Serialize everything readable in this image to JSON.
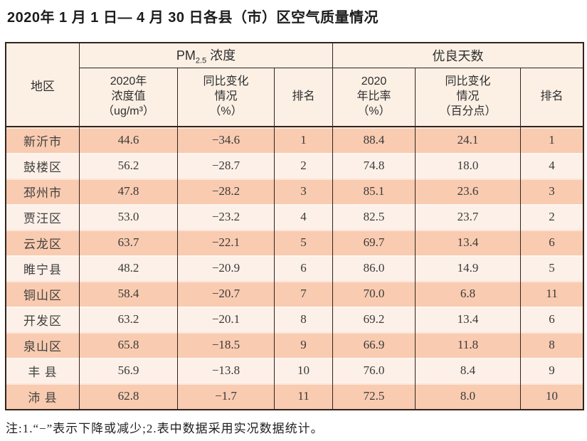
{
  "title": "2020年 1 月 1 日— 4 月 30 日各县（市）区空气质量情况",
  "note": "注:1.“−”表示下降或减少;2.表中数据采用实况数据统计。",
  "colors": {
    "row_dark": "#f9cbb0",
    "row_light": "#fdf0e8",
    "header_bg": "#fcf0e5",
    "border": "#32231c"
  },
  "table": {
    "region_header": "地区",
    "group_pm": {
      "prefix": "PM",
      "sub": "2.5",
      "suffix": " 浓度"
    },
    "group_days": "优良天数",
    "subheaders": {
      "pm_value": "2020年\n浓度值\n（ug/m³）",
      "pm_change": "同比变化\n情况\n（%）",
      "pm_rank": "排名",
      "days_ratio": "2020\n年比率\n（%）",
      "days_change": "同比变化\n情况\n（百分点）",
      "days_rank": "排名"
    },
    "rows": [
      {
        "region": "新沂市",
        "pm_value": "44.6",
        "pm_change": "−34.6",
        "pm_rank": "1",
        "days_ratio": "88.4",
        "days_change": "24.1",
        "days_rank": "1"
      },
      {
        "region": "鼓楼区",
        "pm_value": "56.2",
        "pm_change": "−28.7",
        "pm_rank": "2",
        "days_ratio": "74.8",
        "days_change": "18.0",
        "days_rank": "4"
      },
      {
        "region": "邳州市",
        "pm_value": "47.8",
        "pm_change": "−28.2",
        "pm_rank": "3",
        "days_ratio": "85.1",
        "days_change": "23.6",
        "days_rank": "3"
      },
      {
        "region": "贾汪区",
        "pm_value": "53.0",
        "pm_change": "−23.2",
        "pm_rank": "4",
        "days_ratio": "82.5",
        "days_change": "23.7",
        "days_rank": "2"
      },
      {
        "region": "云龙区",
        "pm_value": "63.7",
        "pm_change": "−22.1",
        "pm_rank": "5",
        "days_ratio": "69.7",
        "days_change": "13.4",
        "days_rank": "6"
      },
      {
        "region": "睢宁县",
        "pm_value": "48.2",
        "pm_change": "−20.9",
        "pm_rank": "6",
        "days_ratio": "86.0",
        "days_change": "14.9",
        "days_rank": "5"
      },
      {
        "region": "铜山区",
        "pm_value": "58.4",
        "pm_change": "−20.7",
        "pm_rank": "7",
        "days_ratio": "70.0",
        "days_change": "6.8",
        "days_rank": "11"
      },
      {
        "region": "开发区",
        "pm_value": "63.2",
        "pm_change": "−20.1",
        "pm_rank": "8",
        "days_ratio": "69.2",
        "days_change": "13.4",
        "days_rank": "6"
      },
      {
        "region": "泉山区",
        "pm_value": "65.8",
        "pm_change": "−18.5",
        "pm_rank": "9",
        "days_ratio": "66.9",
        "days_change": "11.8",
        "days_rank": "8"
      },
      {
        "region": "丰 县",
        "pm_value": "56.9",
        "pm_change": "−13.8",
        "pm_rank": "10",
        "days_ratio": "76.0",
        "days_change": "8.4",
        "days_rank": "9"
      },
      {
        "region": "沛 县",
        "pm_value": "62.8",
        "pm_change": "−1.7",
        "pm_rank": "11",
        "days_ratio": "72.5",
        "days_change": "8.0",
        "days_rank": "10"
      }
    ]
  }
}
